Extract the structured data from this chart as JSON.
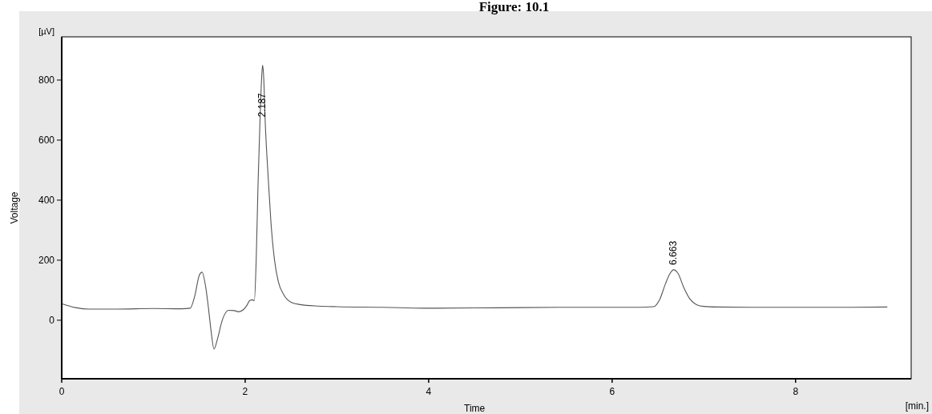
{
  "chart_data": {
    "type": "line",
    "title": "Figure: 10.1",
    "xlabel": "Time",
    "ylabel": "Voltage",
    "annotations": [
      "[µV]",
      "[min.]",
      {
        "text": "2.187",
        "x": 2.187,
        "y": 850
      },
      {
        "text": "6.663",
        "x": 6.663,
        "y": 168
      }
    ],
    "x": [
      0,
      0.15,
      0.3,
      0.6,
      1.0,
      1.3,
      1.4,
      1.45,
      1.5,
      1.53,
      1.57,
      1.6,
      1.63,
      1.66,
      1.7,
      1.75,
      1.82,
      1.88,
      1.93,
      1.98,
      2.02,
      2.05,
      2.08,
      2.1,
      2.12,
      2.14,
      2.16,
      2.18,
      2.19,
      2.2,
      2.22,
      2.25,
      2.28,
      2.32,
      2.36,
      2.42,
      2.5,
      2.6,
      2.8,
      3.0,
      3.5,
      4.0,
      4.5,
      5.0,
      5.5,
      6.0,
      6.3,
      6.45,
      6.52,
      6.58,
      6.63,
      6.67,
      6.72,
      6.78,
      6.85,
      6.92,
      7.0,
      7.15,
      7.5,
      8.0,
      8.5,
      9.0
    ],
    "series": [
      {
        "color": "#555555",
        "values": [
          55,
          42,
          37,
          37,
          39,
          38,
          40,
          80,
          150,
          160,
          110,
          40,
          -40,
          -96,
          -60,
          0,
          33,
          32,
          28,
          35,
          50,
          66,
          68,
          65,
          200,
          450,
          650,
          810,
          850,
          820,
          650,
          480,
          330,
          200,
          130,
          85,
          60,
          52,
          47,
          45,
          43,
          40,
          41,
          42,
          43,
          43,
          43,
          45,
          70,
          120,
          155,
          168,
          155,
          110,
          70,
          52,
          46,
          44,
          43,
          43,
          43,
          44
        ]
      }
    ],
    "xlim": [
      0,
      9.26
    ],
    "ylim": [
      -195,
      944
    ],
    "xticks": [
      0,
      2,
      4,
      6,
      8
    ],
    "yticks": [
      0,
      200,
      400,
      600,
      800
    ],
    "grid": false,
    "marker": "none",
    "line_style": "solid"
  }
}
